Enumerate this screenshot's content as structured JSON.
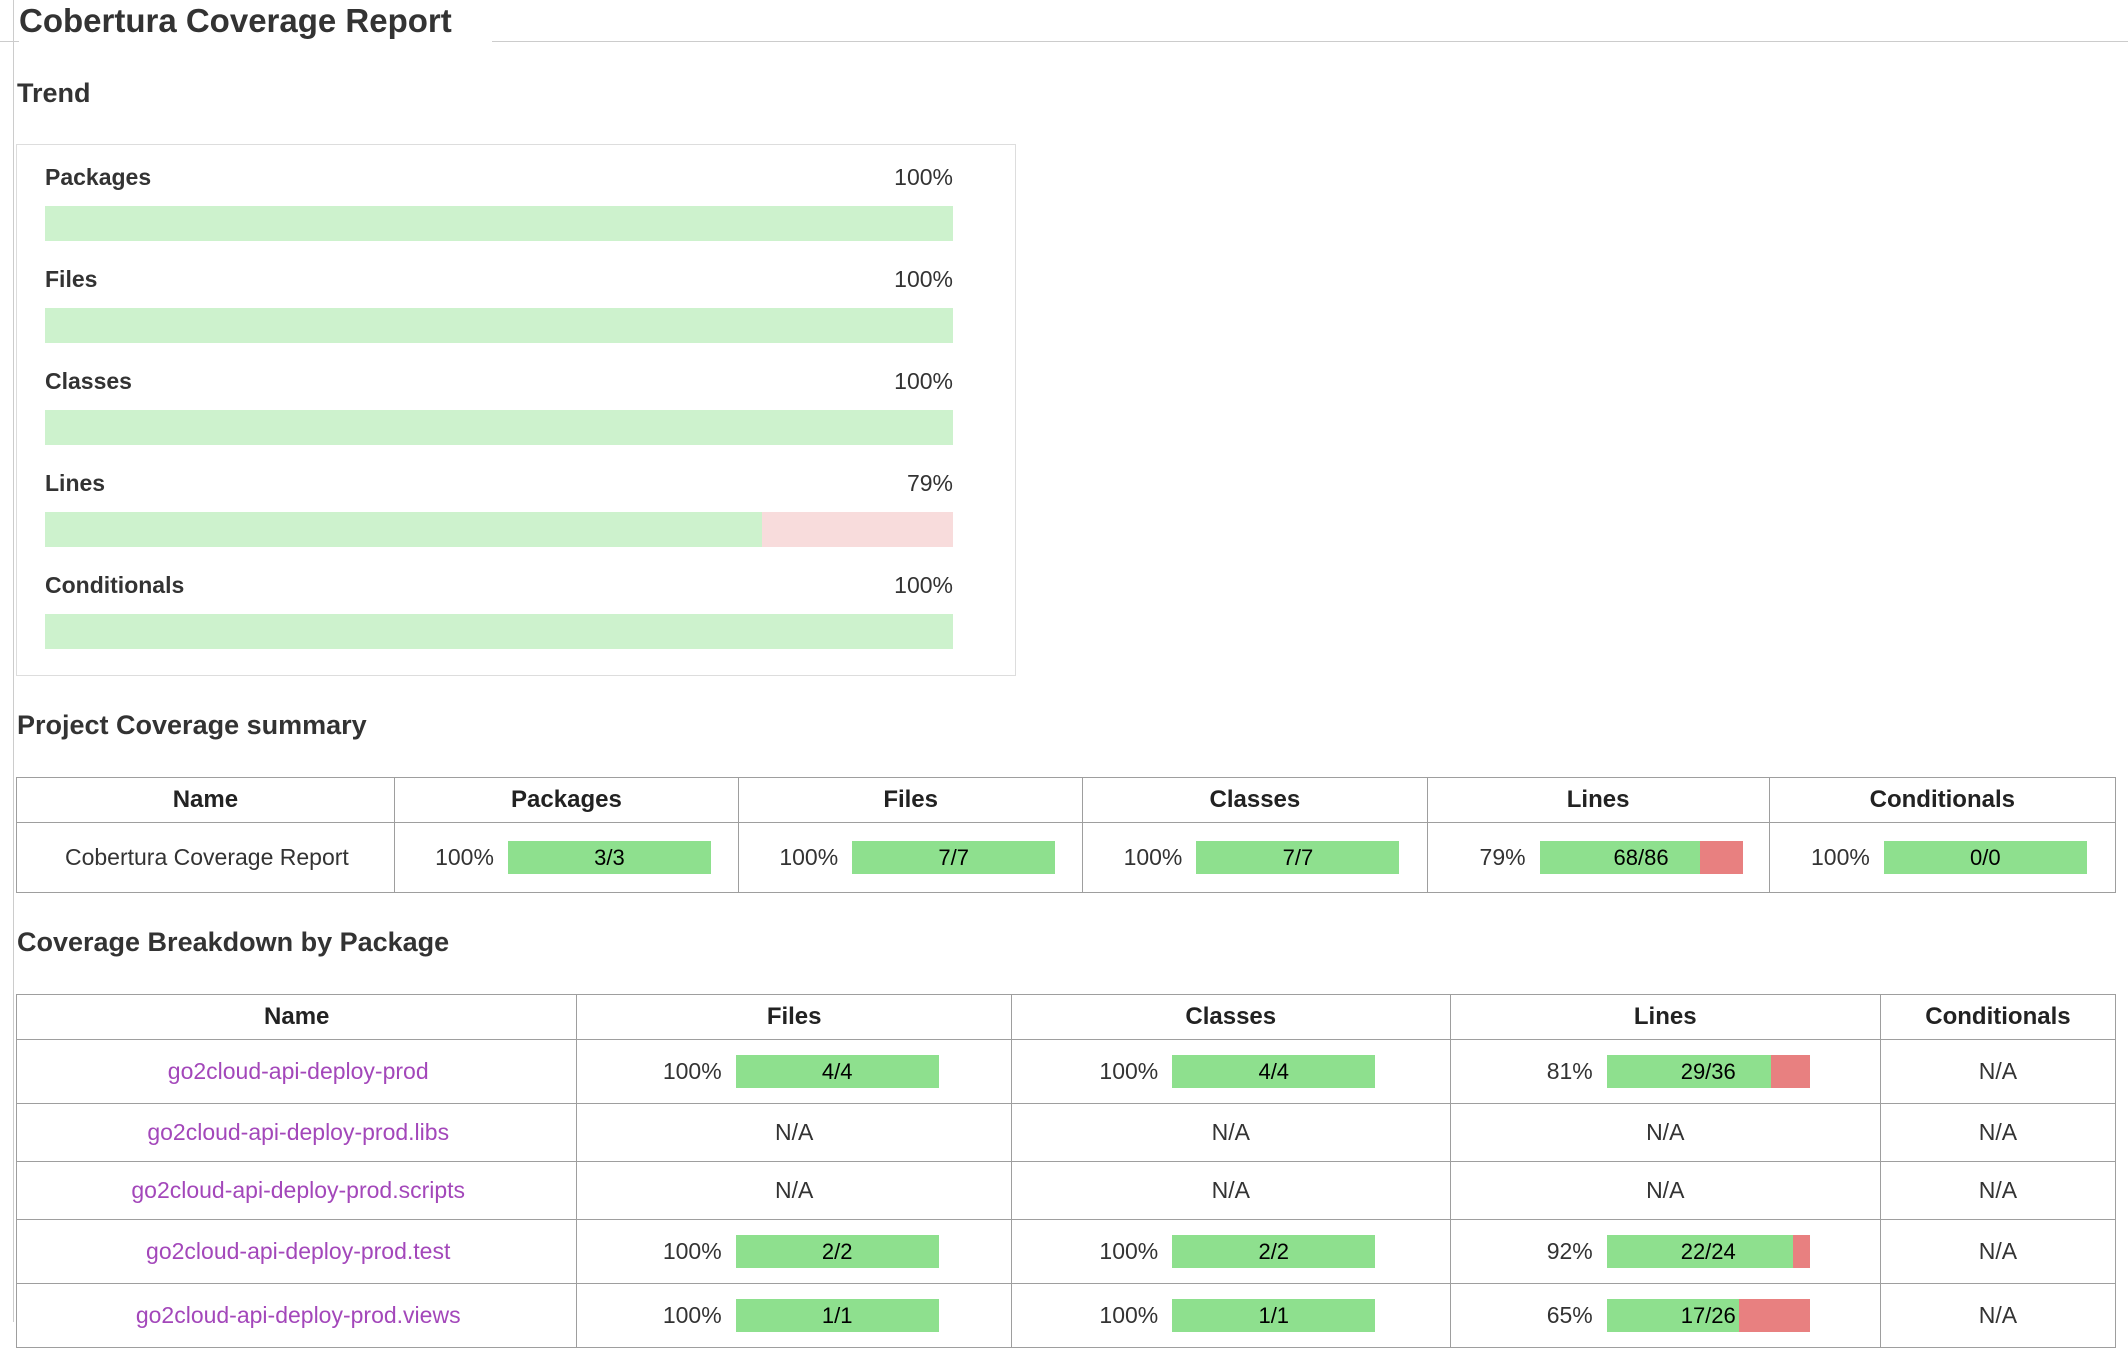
{
  "page": {
    "title": "Cobertura Coverage Report"
  },
  "colors": {
    "heading": "#333333",
    "border": "#9e9e9e",
    "trend-green": "#cdf2cd",
    "trend-pink": "#f8dcdc",
    "bar-green": "#8ee08e",
    "bar-red": "#e88080",
    "link-purple": "#a347ba"
  },
  "trend": {
    "heading": "Trend",
    "rows": [
      {
        "label": "Packages",
        "pct": 100,
        "pct_label": "100%"
      },
      {
        "label": "Files",
        "pct": 100,
        "pct_label": "100%"
      },
      {
        "label": "Classes",
        "pct": 100,
        "pct_label": "100%"
      },
      {
        "label": "Lines",
        "pct": 79,
        "pct_label": "79%"
      },
      {
        "label": "Conditionals",
        "pct": 100,
        "pct_label": "100%"
      }
    ]
  },
  "summary": {
    "heading": "Project Coverage summary",
    "headers": [
      "Name",
      "Packages",
      "Files",
      "Classes",
      "Lines",
      "Conditionals"
    ],
    "row": {
      "name": "Cobertura Coverage Report",
      "metrics": [
        {
          "pct_label": "100%",
          "pct": 100,
          "ratio": "3/3"
        },
        {
          "pct_label": "100%",
          "pct": 100,
          "ratio": "7/7"
        },
        {
          "pct_label": "100%",
          "pct": 100,
          "ratio": "7/7"
        },
        {
          "pct_label": "79%",
          "pct": 79,
          "ratio": "68/86"
        },
        {
          "pct_label": "100%",
          "pct": 100,
          "ratio": "0/0"
        }
      ]
    }
  },
  "breakdown": {
    "heading": "Coverage Breakdown by Package",
    "headers": [
      "Name",
      "Files",
      "Classes",
      "Lines",
      "Conditionals"
    ],
    "rows": [
      {
        "name": "go2cloud-api-deploy-prod",
        "files": {
          "pct_label": "100%",
          "pct": 100,
          "ratio": "4/4"
        },
        "classes": {
          "pct_label": "100%",
          "pct": 100,
          "ratio": "4/4"
        },
        "lines": {
          "pct_label": "81%",
          "pct": 81,
          "ratio": "29/36"
        },
        "conditionals": "N/A"
      },
      {
        "name": "go2cloud-api-deploy-prod.libs",
        "files": "N/A",
        "classes": "N/A",
        "lines": "N/A",
        "conditionals": "N/A"
      },
      {
        "name": "go2cloud-api-deploy-prod.scripts",
        "files": "N/A",
        "classes": "N/A",
        "lines": "N/A",
        "conditionals": "N/A"
      },
      {
        "name": "go2cloud-api-deploy-prod.test",
        "files": {
          "pct_label": "100%",
          "pct": 100,
          "ratio": "2/2"
        },
        "classes": {
          "pct_label": "100%",
          "pct": 100,
          "ratio": "2/2"
        },
        "lines": {
          "pct_label": "92%",
          "pct": 92,
          "ratio": "22/24"
        },
        "conditionals": "N/A"
      },
      {
        "name": "go2cloud-api-deploy-prod.views",
        "files": {
          "pct_label": "100%",
          "pct": 100,
          "ratio": "1/1"
        },
        "classes": {
          "pct_label": "100%",
          "pct": 100,
          "ratio": "1/1"
        },
        "lines": {
          "pct_label": "65%",
          "pct": 65,
          "ratio": "17/26"
        },
        "conditionals": "N/A"
      }
    ]
  }
}
